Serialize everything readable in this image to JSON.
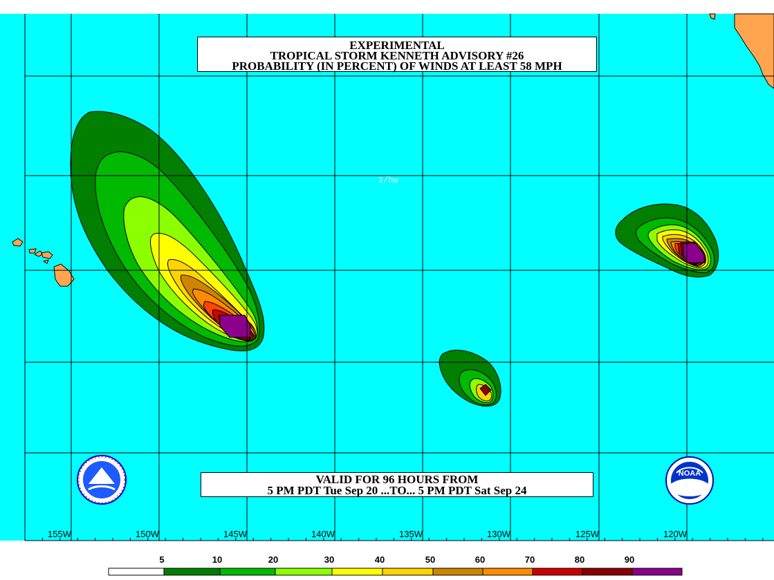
{
  "title": {
    "line1": "EXPERIMENTAL",
    "line2": "TROPICAL STORM KENNETH ADVISORY #26",
    "line3": "PROBABILITY (IN PERCENT) OF WINDS AT LEAST 58 MPH"
  },
  "valid": {
    "line1": "VALID FOR 96 HOURS FROM",
    "line2": "5 PM PDT Tue Sep 20 ...TO... 5 PM PDT Sat Sep 24"
  },
  "map_tag": "2/hw",
  "longitude_labels": [
    "155W",
    "150W",
    "145W",
    "140W",
    "135W",
    "130W",
    "125W",
    "120W"
  ],
  "scale": {
    "labels": [
      "5",
      "10",
      "20",
      "30",
      "40",
      "50",
      "60",
      "70",
      "80",
      "90"
    ],
    "colors": [
      "#ffffff",
      "#007f00",
      "#00b900",
      "#00e800",
      "#8cff00",
      "#ffff00",
      "#ffd400",
      "#cd8500",
      "#ff8c00",
      "#ff4500",
      "#cd0000",
      "#8b0000",
      "#8b008b"
    ]
  },
  "colors": {
    "ocean": "#00ffff",
    "land": "#ffa54f",
    "grid": "#000000"
  },
  "logos": {
    "left": "nws-logo",
    "right": "noaa-logo",
    "noaa_text": "NOAA"
  }
}
